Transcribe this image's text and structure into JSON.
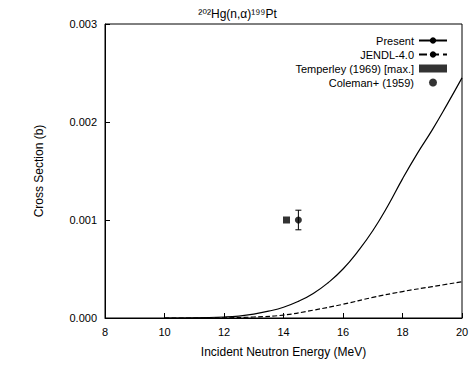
{
  "chart_data": {
    "type": "line",
    "title": "²⁰²Hg(n,α)¹⁹⁹Pt",
    "x_label": "Incident Neutron Energy (MeV)",
    "y_label": "Cross Section (b)",
    "xlim": [
      8,
      20
    ],
    "xticks": [
      8,
      10,
      12,
      14,
      16,
      18,
      20
    ],
    "ylim": [
      0,
      0.003
    ],
    "yticks": [
      {
        "value": 0,
        "label": "0.000"
      },
      {
        "value": 0.001,
        "label": "0.001"
      },
      {
        "value": 0.002,
        "label": "0.002"
      },
      {
        "value": 0.003,
        "label": "0.003"
      }
    ],
    "grid": false,
    "legend": "top-right",
    "series": [
      {
        "name": "Present",
        "type": "line",
        "color": "#000000",
        "line_style": "solid",
        "x": [
          10,
          11,
          12,
          12.5,
          13,
          13.5,
          14,
          14.5,
          15,
          15.5,
          16,
          16.5,
          17,
          17.5,
          18,
          18.5,
          19,
          19.5,
          20
        ],
        "values": [
          0,
          2e-06,
          1e-05,
          2e-05,
          4e-05,
          7e-05,
          0.00011,
          0.00017,
          0.00025,
          0.00036,
          0.0005,
          0.00068,
          0.00089,
          0.00114,
          0.00142,
          0.00168,
          0.00192,
          0.00218,
          0.00245
        ]
      },
      {
        "name": "JENDL-4.0",
        "type": "line",
        "color": "#000000",
        "line_style": "dashed",
        "x": [
          10,
          11,
          12,
          13,
          14,
          15,
          16,
          17,
          18,
          19,
          20
        ],
        "values": [
          0,
          0,
          2e-06,
          1e-05,
          3e-05,
          8e-05,
          0.00014,
          0.00021,
          0.00027,
          0.00032,
          0.00037
        ]
      },
      {
        "name": "Temperley (1969) [max.]",
        "type": "scatter",
        "color": "#000000",
        "marker": "square",
        "x": [
          14.1
        ],
        "values": [
          0.001
        ]
      },
      {
        "name": "Coleman+ (1959)",
        "type": "scatter",
        "color": "#000000",
        "marker": "circle",
        "x": [
          14.5
        ],
        "values": [
          0.001
        ],
        "yerr": [
          0.0001
        ]
      }
    ]
  }
}
